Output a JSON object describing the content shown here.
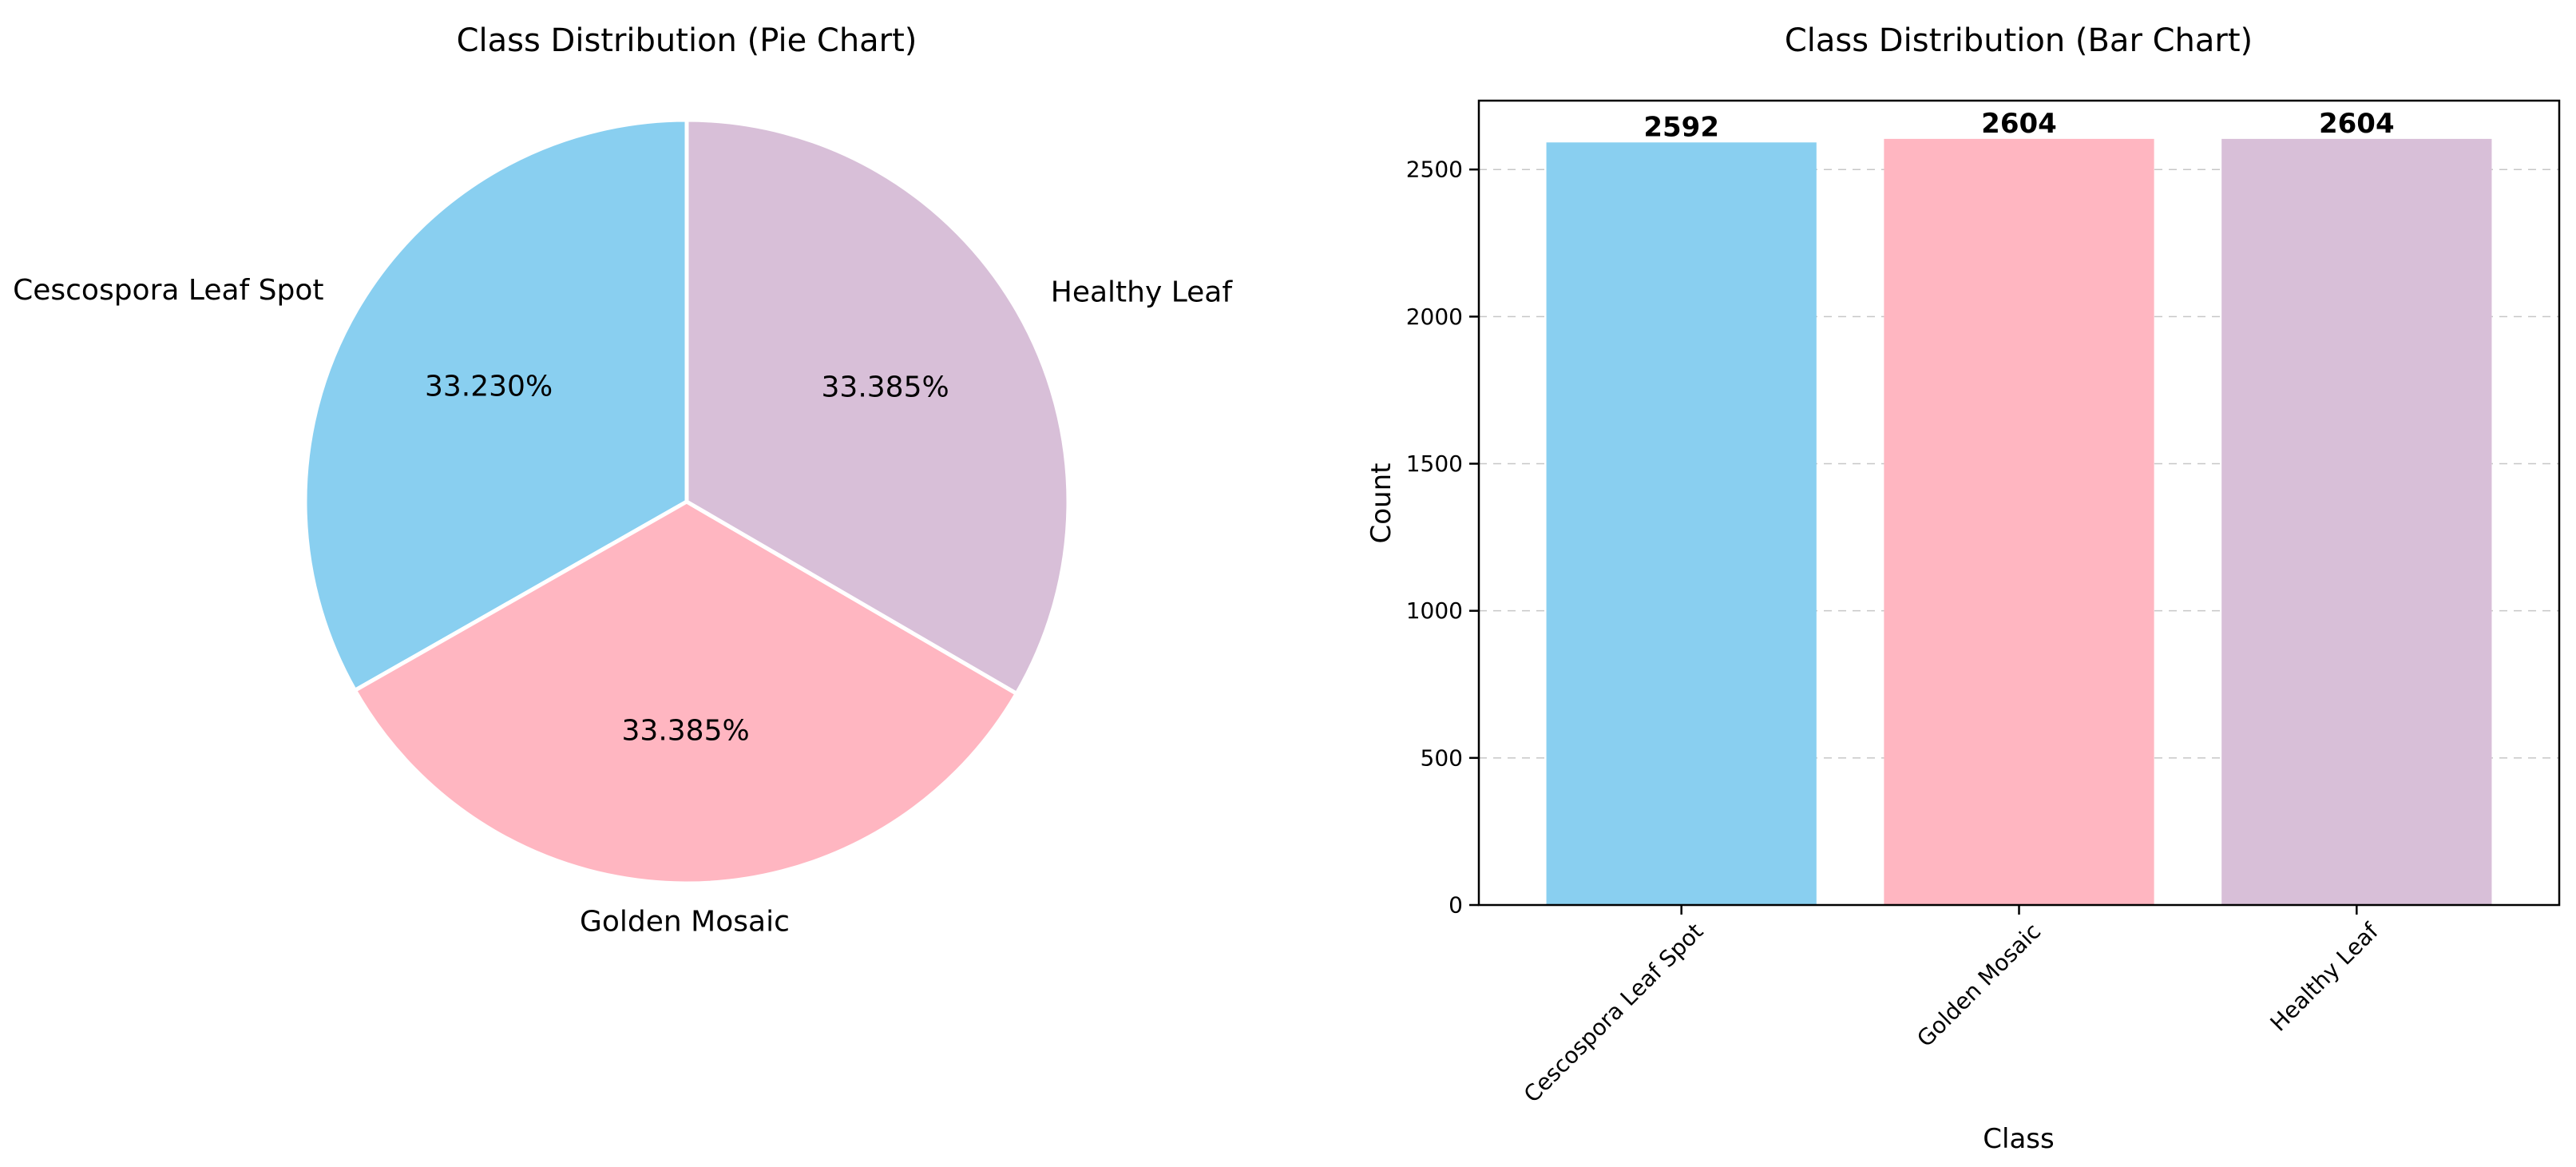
{
  "chart_data": [
    {
      "type": "pie",
      "title": "Class Distribution (Pie Chart)",
      "categories": [
        "Cescospora Leaf Spot",
        "Golden Mosaic",
        "Healthy Leaf"
      ],
      "values": [
        2592,
        2604,
        2604
      ],
      "percent_labels": [
        "33.230%",
        "33.385%",
        "33.385%"
      ],
      "colors": [
        "#89CFF0",
        "#FFB6C1",
        "#D8BFD8"
      ],
      "start_angle_deg": 90,
      "direction": "counterclockwise",
      "edge_color": "#ffffff"
    },
    {
      "type": "bar",
      "title": "Class Distribution (Bar Chart)",
      "categories": [
        "Cescospora Leaf Spot",
        "Golden Mosaic",
        "Healthy Leaf"
      ],
      "values": [
        2592,
        2604,
        2604
      ],
      "data_labels": [
        "2592",
        "2604",
        "2604"
      ],
      "colors": [
        "#89CFF0",
        "#FFB6C1",
        "#D8BFD8"
      ],
      "xlabel": "Class",
      "ylabel": "Count",
      "ylim": [
        0,
        2734
      ],
      "yticks": [
        0,
        500,
        1000,
        1500,
        2000,
        2500
      ],
      "ytick_labels": [
        "0",
        "500",
        "1000",
        "1500",
        "2000",
        "2500"
      ],
      "grid": "y-dashed",
      "xtick_rotation_deg": 45
    }
  ]
}
